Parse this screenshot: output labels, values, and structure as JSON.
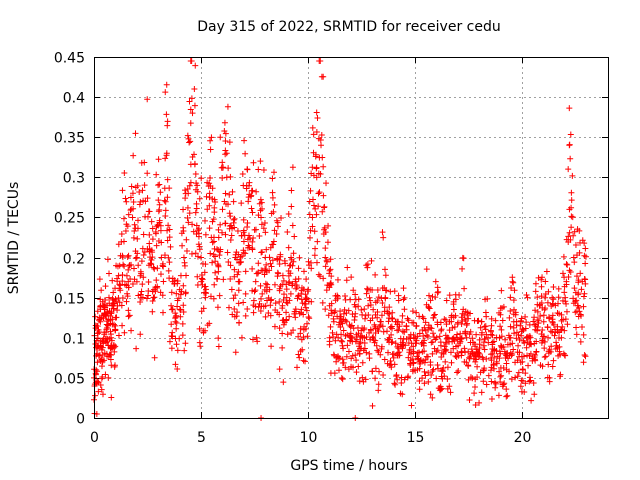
{
  "chart_data": {
    "type": "scatter",
    "title": "Day 315 of 2022, SRMTID for receiver cedu",
    "xlabel": "GPS time / hours",
    "ylabel": "SRMTID / TECUs",
    "xlim": [
      0,
      24
    ],
    "ylim": [
      0,
      0.45
    ],
    "xticks": [
      0,
      5,
      10,
      15,
      20
    ],
    "yticks": [
      0,
      0.05,
      0.1,
      0.15,
      0.2,
      0.25,
      0.3,
      0.35,
      0.4,
      0.45
    ],
    "xtick_labels": [
      "0",
      "5",
      "10",
      "15",
      "20"
    ],
    "ytick_labels": [
      "0",
      "0.05",
      "0.1",
      "0.15",
      "0.2",
      "0.25",
      "0.3",
      "0.35",
      "0.4",
      "0.45"
    ],
    "grid": true,
    "marker": "+",
    "color": "#ff0000",
    "series": [
      {
        "name": "SRMTID",
        "x": [
          0.0,
          0.1,
          0.2,
          0.3,
          0.4,
          0.5,
          0.6,
          0.7,
          0.8,
          0.9,
          1.0,
          1.2,
          1.4,
          1.6,
          1.8,
          2.0,
          2.2,
          2.4,
          2.6,
          2.8,
          3.0,
          3.2,
          3.4,
          3.6,
          3.8,
          4.0,
          4.2,
          4.4,
          4.6,
          4.8,
          5.0,
          5.2,
          5.4,
          5.6,
          5.8,
          6.0,
          6.2,
          6.4,
          6.6,
          6.8,
          7.0,
          7.2,
          7.4,
          7.6,
          7.8,
          8.0,
          8.2,
          8.4,
          8.6,
          8.8,
          9.0,
          9.2,
          9.4,
          9.6,
          9.8,
          10.0,
          10.2,
          10.4,
          10.6,
          10.8,
          11.0,
          11.2,
          11.4,
          11.6,
          11.8,
          12.0,
          12.2,
          12.4,
          12.6,
          12.8,
          13.0,
          13.2,
          13.4,
          13.6,
          13.8,
          14.0,
          14.2,
          14.4,
          14.6,
          14.8,
          15.0,
          15.2,
          15.4,
          15.6,
          15.8,
          16.0,
          16.2,
          16.4,
          16.6,
          16.8,
          17.0,
          17.2,
          17.4,
          17.6,
          17.8,
          18.0,
          18.2,
          18.4,
          18.6,
          18.8,
          19.0,
          19.2,
          19.4,
          19.6,
          19.8,
          20.0,
          20.2,
          20.4,
          20.6,
          20.8,
          21.0,
          21.2,
          21.4,
          21.6,
          21.8,
          22.0,
          22.2,
          22.4,
          22.6,
          22.8
        ],
        "y": [
          0.05,
          0.06,
          0.09,
          0.12,
          0.07,
          0.13,
          0.08,
          0.15,
          0.1,
          0.14,
          0.11,
          0.19,
          0.22,
          0.17,
          0.25,
          0.2,
          0.18,
          0.27,
          0.21,
          0.16,
          0.24,
          0.19,
          0.33,
          0.14,
          0.12,
          0.16,
          0.2,
          0.28,
          0.38,
          0.24,
          0.2,
          0.15,
          0.28,
          0.22,
          0.19,
          0.26,
          0.3,
          0.24,
          0.2,
          0.17,
          0.22,
          0.27,
          0.21,
          0.18,
          0.25,
          0.2,
          0.16,
          0.22,
          0.18,
          0.14,
          0.15,
          0.2,
          0.17,
          0.13,
          0.11,
          0.16,
          0.25,
          0.3,
          0.34,
          0.2,
          0.14,
          0.12,
          0.1,
          0.09,
          0.12,
          0.1,
          0.13,
          0.08,
          0.11,
          0.14,
          0.1,
          0.09,
          0.12,
          0.15,
          0.1,
          0.08,
          0.12,
          0.09,
          0.11,
          0.08,
          0.1,
          0.07,
          0.09,
          0.11,
          0.08,
          0.1,
          0.09,
          0.07,
          0.12,
          0.1,
          0.09,
          0.13,
          0.1,
          0.08,
          0.07,
          0.08,
          0.09,
          0.1,
          0.08,
          0.07,
          0.09,
          0.08,
          0.1,
          0.12,
          0.09,
          0.07,
          0.1,
          0.08,
          0.11,
          0.14,
          0.12,
          0.1,
          0.12,
          0.09,
          0.11,
          0.15,
          0.26,
          0.2,
          0.14,
          0.17
        ]
      }
    ],
    "extra_points": [
      {
        "x": 7.8,
        "y": 0.0
      },
      {
        "x": 12.2,
        "y": 0.0
      }
    ]
  }
}
